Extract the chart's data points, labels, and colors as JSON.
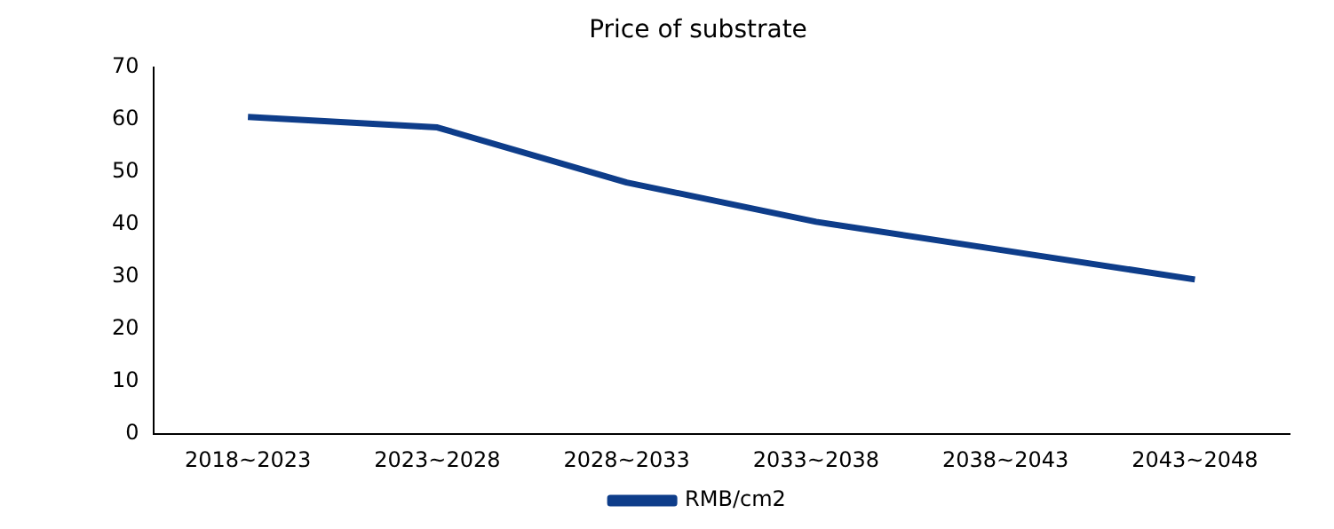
{
  "chart_data": {
    "type": "line",
    "title": "Price of substrate",
    "categories": [
      "2018~2023",
      "2023~2028",
      "2028~2033",
      "2033~2038",
      "2038~2043",
      "2043~2048"
    ],
    "series": [
      {
        "name": "RMB/cm2",
        "color": "#0e3d8a",
        "values": [
          60.5,
          58.5,
          48,
          40.5,
          35,
          29.5
        ]
      }
    ],
    "ylim": [
      0,
      70
    ],
    "yticks": [
      0,
      10,
      20,
      30,
      40,
      50,
      60,
      70
    ],
    "grid": false,
    "legend": "bottom",
    "marker": "none",
    "line_style": "solid"
  }
}
